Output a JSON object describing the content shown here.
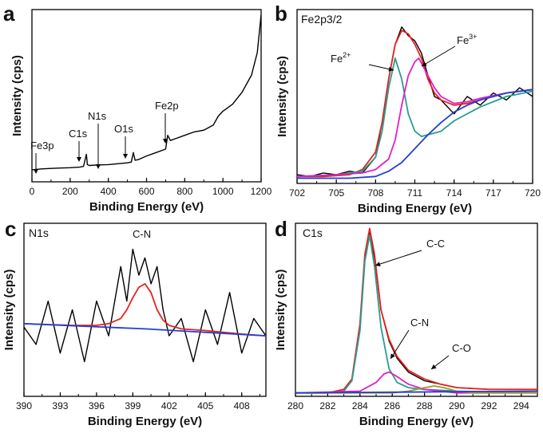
{
  "chart_data": [
    {
      "panel": "a",
      "type": "line",
      "title": "",
      "xlabel": "Binding Energy (eV)",
      "ylabel": "Intensity (cps)",
      "xlim": [
        0,
        1200
      ],
      "xticks": [
        0,
        200,
        400,
        600,
        800,
        1000,
        1200
      ],
      "yticks": [],
      "grid": false,
      "series": [
        {
          "name": "",
          "color": "#000000",
          "x": [
            0,
            50,
            100,
            150,
            200,
            250,
            270,
            285,
            290,
            300,
            350,
            400,
            450,
            500,
            520,
            531,
            540,
            560,
            600,
            650,
            700,
            711,
            725,
            750,
            800,
            850,
            900,
            950,
            975,
            1000,
            1050,
            1100,
            1150,
            1180,
            1200
          ],
          "y": [
            0.07,
            0.075,
            0.078,
            0.08,
            0.082,
            0.085,
            0.09,
            0.16,
            0.1,
            0.095,
            0.098,
            0.1,
            0.105,
            0.11,
            0.115,
            0.17,
            0.125,
            0.13,
            0.15,
            0.17,
            0.19,
            0.27,
            0.24,
            0.25,
            0.27,
            0.29,
            0.3,
            0.33,
            0.38,
            0.41,
            0.45,
            0.52,
            0.62,
            0.75,
            0.97
          ]
        }
      ],
      "annotations": [
        {
          "text": "Fe3p",
          "x": 55
        },
        {
          "text": "C1s",
          "x": 285
        },
        {
          "text": "N1s",
          "x": 400
        },
        {
          "text": "O1s",
          "x": 531
        },
        {
          "text": "Fe2p",
          "x": 711
        }
      ]
    },
    {
      "panel": "b",
      "type": "line",
      "title": "Fe2p3/2",
      "xlabel": "Binding Energy (eV)",
      "ylabel": "Intensity (cps)",
      "xlim": [
        702,
        720
      ],
      "xticks": [
        702,
        705,
        708,
        711,
        714,
        717,
        720
      ],
      "yticks": [],
      "grid": false,
      "series": [
        {
          "name": "",
          "color": "#000000",
          "x": [
            702,
            703,
            704,
            705,
            706,
            707,
            708,
            708.5,
            709,
            709.5,
            710,
            710.5,
            711,
            711.5,
            712,
            712.5,
            713,
            713.5,
            714,
            715,
            716,
            717,
            718,
            719,
            720
          ],
          "y": [
            0.05,
            0.04,
            0.06,
            0.05,
            0.07,
            0.06,
            0.15,
            0.35,
            0.6,
            0.8,
            0.9,
            0.85,
            0.82,
            0.75,
            0.62,
            0.5,
            0.48,
            0.44,
            0.4,
            0.5,
            0.45,
            0.52,
            0.48,
            0.55,
            0.5
          ]
        },
        {
          "name": "",
          "color": "#e8211d",
          "x": [
            702,
            704,
            706,
            707,
            708,
            708.5,
            709,
            709.5,
            710,
            710.5,
            711,
            711.5,
            712,
            712.5,
            713,
            714,
            715,
            716,
            717,
            718,
            719,
            720
          ],
          "y": [
            0.04,
            0.04,
            0.05,
            0.08,
            0.18,
            0.35,
            0.6,
            0.8,
            0.88,
            0.86,
            0.8,
            0.72,
            0.6,
            0.52,
            0.48,
            0.45,
            0.46,
            0.48,
            0.5,
            0.52,
            0.53,
            0.54
          ]
        },
        {
          "name": "Fe2+",
          "color": "#2a9d8f",
          "x": [
            702,
            705,
            707,
            708,
            708.5,
            709,
            709.5,
            710,
            710.5,
            711,
            711.5,
            712,
            713,
            714,
            716,
            718,
            720
          ],
          "y": [
            0.04,
            0.05,
            0.07,
            0.15,
            0.3,
            0.55,
            0.72,
            0.6,
            0.4,
            0.3,
            0.27,
            0.28,
            0.3,
            0.36,
            0.44,
            0.5,
            0.53
          ]
        },
        {
          "name": "Fe3+",
          "color": "#e020c8",
          "x": [
            702,
            705,
            707,
            708,
            709,
            709.5,
            710,
            710.5,
            711,
            711.3,
            712,
            712.5,
            713,
            714,
            715,
            716,
            718,
            720
          ],
          "y": [
            0.04,
            0.05,
            0.06,
            0.08,
            0.14,
            0.25,
            0.45,
            0.62,
            0.7,
            0.72,
            0.62,
            0.55,
            0.5,
            0.46,
            0.47,
            0.49,
            0.52,
            0.54
          ]
        },
        {
          "name": "",
          "color": "#1f3fd6",
          "x": [
            702,
            704,
            706,
            708,
            709,
            710,
            711,
            712,
            713,
            714,
            715,
            716,
            718,
            720
          ],
          "y": [
            0.03,
            0.03,
            0.03,
            0.04,
            0.07,
            0.12,
            0.2,
            0.28,
            0.35,
            0.41,
            0.45,
            0.48,
            0.52,
            0.54
          ]
        }
      ],
      "annotations": [
        {
          "text": "Fe",
          "sup": "2+",
          "x": 709.6
        },
        {
          "text": "Fe",
          "sup": "3+",
          "x": 711.3
        }
      ]
    },
    {
      "panel": "c",
      "type": "line",
      "title": "N1s",
      "xlabel": "Binding Energy (eV)",
      "ylabel": "Intensity (cps)",
      "xlim": [
        390,
        410
      ],
      "xticks": [
        390,
        393,
        396,
        399,
        402,
        405,
        408
      ],
      "yticks": [],
      "grid": false,
      "series": [
        {
          "name": "",
          "color": "#000000",
          "x": [
            390,
            391,
            392,
            393,
            394,
            395,
            396,
            397,
            398,
            398.5,
            399,
            399.5,
            400,
            400.5,
            401,
            401.5,
            402,
            403,
            404,
            405,
            406,
            407,
            408,
            409,
            410
          ],
          "y": [
            0.4,
            0.3,
            0.55,
            0.25,
            0.5,
            0.2,
            0.55,
            0.35,
            0.75,
            0.55,
            0.85,
            0.7,
            0.8,
            0.65,
            0.75,
            0.5,
            0.35,
            0.45,
            0.2,
            0.5,
            0.3,
            0.6,
            0.25,
            0.45,
            0.35
          ]
        },
        {
          "name": "",
          "color": "#e8211d",
          "x": [
            390,
            394,
            396,
            397,
            398,
            398.5,
            399,
            399.5,
            400,
            400.5,
            401,
            401.5,
            402,
            403,
            405,
            408,
            410
          ],
          "y": [
            0.42,
            0.41,
            0.41,
            0.42,
            0.45,
            0.5,
            0.57,
            0.63,
            0.65,
            0.6,
            0.5,
            0.44,
            0.41,
            0.39,
            0.38,
            0.36,
            0.35
          ]
        },
        {
          "name": "",
          "color": "#1f3fd6",
          "x": [
            390,
            400,
            410
          ],
          "y": [
            0.42,
            0.39,
            0.35
          ]
        }
      ],
      "annotations": [
        {
          "text": "C-N",
          "x": 400
        }
      ]
    },
    {
      "panel": "d",
      "type": "line",
      "title": "C1s",
      "xlabel": "Binding Energy (eV)",
      "ylabel": "Intensity (cps)",
      "xlim": [
        280,
        295
      ],
      "xticks": [
        280,
        282,
        284,
        286,
        288,
        290,
        292,
        294
      ],
      "yticks": [],
      "grid": false,
      "series": [
        {
          "name": "",
          "color": "#000000",
          "x": [
            280,
            282,
            283,
            283.5,
            284,
            284.3,
            284.6,
            284.9,
            285.3,
            285.8,
            286.3,
            287,
            288,
            289,
            290,
            292,
            295
          ],
          "y": [
            0.02,
            0.02,
            0.04,
            0.1,
            0.4,
            0.8,
            0.95,
            0.8,
            0.5,
            0.32,
            0.22,
            0.14,
            0.09,
            0.07,
            0.05,
            0.04,
            0.04
          ]
        },
        {
          "name": "",
          "color": "#e8211d",
          "x": [
            280,
            282,
            283,
            283.5,
            284,
            284.3,
            284.6,
            284.9,
            285.3,
            285.8,
            286.3,
            287,
            288,
            289,
            290,
            292,
            295
          ],
          "y": [
            0.02,
            0.02,
            0.04,
            0.1,
            0.42,
            0.82,
            0.97,
            0.82,
            0.5,
            0.33,
            0.23,
            0.15,
            0.1,
            0.07,
            0.05,
            0.04,
            0.04
          ]
        },
        {
          "name": "C-C",
          "color": "#2a9d8f",
          "x": [
            280,
            282,
            283,
            283.5,
            284,
            284.3,
            284.6,
            284.9,
            285.3,
            285.8,
            286.3,
            287,
            288,
            290,
            295
          ],
          "y": [
            0.02,
            0.02,
            0.03,
            0.09,
            0.38,
            0.78,
            0.93,
            0.75,
            0.4,
            0.16,
            0.08,
            0.05,
            0.04,
            0.03,
            0.02
          ]
        },
        {
          "name": "C-N",
          "color": "#e020c8",
          "x": [
            280,
            284,
            285,
            285.5,
            285.8,
            286.2,
            287,
            288,
            290,
            295
          ],
          "y": [
            0.02,
            0.03,
            0.08,
            0.13,
            0.14,
            0.12,
            0.07,
            0.04,
            0.02,
            0.02
          ]
        },
        {
          "name": "C-O",
          "color": "#9b9b2a",
          "x": [
            280,
            286,
            287,
            288,
            288.6,
            289.2,
            290,
            291,
            295
          ],
          "y": [
            0.02,
            0.02,
            0.03,
            0.05,
            0.06,
            0.05,
            0.03,
            0.02,
            0.02
          ]
        },
        {
          "name": "",
          "color": "#1f3fd6",
          "x": [
            280,
            295
          ],
          "y": [
            0.02,
            0.03
          ]
        }
      ],
      "annotations": [
        {
          "text": "C-C",
          "x": 284.6
        },
        {
          "text": "C-N",
          "x": 285.8
        },
        {
          "text": "C-O",
          "x": 288.6
        }
      ]
    }
  ]
}
